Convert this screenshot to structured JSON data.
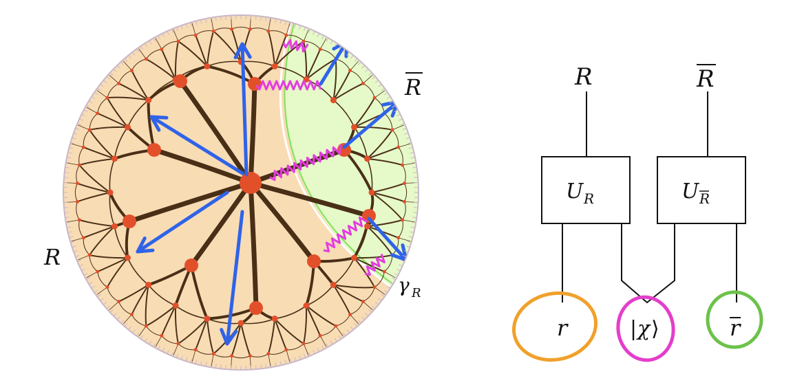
{
  "left_diagram": {
    "region_label": "R",
    "complement_label_base": "R",
    "complement_label_bar": "overline",
    "geodesic_label_base": "γ",
    "geodesic_label_sub": "R",
    "colors": {
      "bulk_fill": "#f8dcb4",
      "complement_fill": "#e6f9c8",
      "boundary_ring": "#c9b7c9",
      "edges": "#4a2f17",
      "nodes": "#e2502a",
      "arrows": "#2f63e8",
      "springs": "#e23ee0",
      "geodesic": "#7fe25c"
    }
  },
  "right_diagram": {
    "top_label_left": "R",
    "top_label_right": "R",
    "box_left_base": "U",
    "box_left_sub": "R",
    "box_right_base": "U",
    "box_right_sub": "R",
    "bottom_left": "r",
    "bottom_mid_bar": "|",
    "bottom_mid_chi": "χ",
    "bottom_mid_angle": "⟩",
    "bottom_right": "r",
    "colors": {
      "circle_left": "#f0a12b",
      "circle_mid": "#e43ecb",
      "circle_right": "#6cc24a",
      "lines": "#111111"
    }
  }
}
